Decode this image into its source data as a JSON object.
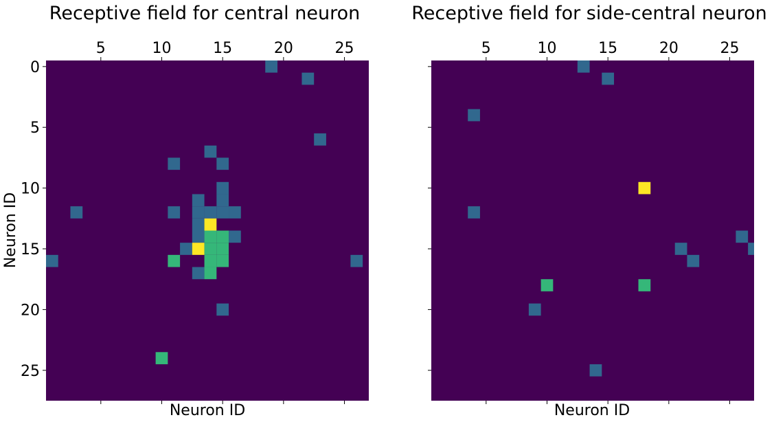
{
  "palette": {
    "background": "#440154",
    "low": "#31688e",
    "mid": "#35b779",
    "high": "#fde725"
  },
  "chart_data": [
    {
      "type": "heatmap",
      "title": "Receptive field for central neuron",
      "xlabel": "Neuron ID",
      "ylabel": "Neuron ID",
      "x_ticks_top": [
        "5",
        "10",
        "15",
        "20",
        "25"
      ],
      "y_ticks": [
        "0",
        "5",
        "10",
        "15",
        "20",
        "25"
      ],
      "x_range": [
        0.5,
        27.0
      ],
      "y_range": [
        -0.5,
        27.5
      ],
      "color_scale": "viridis",
      "cells": [
        {
          "x": 19,
          "y": 0,
          "level": 1
        },
        {
          "x": 22,
          "y": 1,
          "level": 1
        },
        {
          "x": 23,
          "y": 6,
          "level": 1
        },
        {
          "x": 14,
          "y": 7,
          "level": 1
        },
        {
          "x": 11,
          "y": 8,
          "level": 1
        },
        {
          "x": 15,
          "y": 8,
          "level": 1
        },
        {
          "x": 15,
          "y": 10,
          "level": 1
        },
        {
          "x": 13,
          "y": 11,
          "level": 1
        },
        {
          "x": 15,
          "y": 11,
          "level": 1
        },
        {
          "x": 3,
          "y": 12,
          "level": 1
        },
        {
          "x": 11,
          "y": 12,
          "level": 1
        },
        {
          "x": 13,
          "y": 12,
          "level": 1
        },
        {
          "x": 14,
          "y": 12,
          "level": 1
        },
        {
          "x": 15,
          "y": 12,
          "level": 1
        },
        {
          "x": 16,
          "y": 12,
          "level": 1
        },
        {
          "x": 13,
          "y": 13,
          "level": 1
        },
        {
          "x": 14,
          "y": 13,
          "level": 3
        },
        {
          "x": 13,
          "y": 14,
          "level": 1
        },
        {
          "x": 14,
          "y": 14,
          "level": 2
        },
        {
          "x": 15,
          "y": 14,
          "level": 2
        },
        {
          "x": 16,
          "y": 14,
          "level": 1
        },
        {
          "x": 12,
          "y": 15,
          "level": 1
        },
        {
          "x": 13,
          "y": 15,
          "level": 3
        },
        {
          "x": 14,
          "y": 15,
          "level": 2
        },
        {
          "x": 15,
          "y": 15,
          "level": 2
        },
        {
          "x": 1,
          "y": 16,
          "level": 1
        },
        {
          "x": 11,
          "y": 16,
          "level": 2
        },
        {
          "x": 14,
          "y": 16,
          "level": 2
        },
        {
          "x": 15,
          "y": 16,
          "level": 2
        },
        {
          "x": 26,
          "y": 16,
          "level": 1
        },
        {
          "x": 13,
          "y": 17,
          "level": 1
        },
        {
          "x": 14,
          "y": 17,
          "level": 2
        },
        {
          "x": 15,
          "y": 20,
          "level": 1
        },
        {
          "x": 10,
          "y": 24,
          "level": 2
        }
      ]
    },
    {
      "type": "heatmap",
      "title": "Receptive field for side-central neuron",
      "xlabel": "Neuron ID",
      "ylabel": "",
      "x_ticks_top": [
        "5",
        "10",
        "15",
        "20",
        "25"
      ],
      "y_ticks": [],
      "x_range": [
        0.5,
        27.0
      ],
      "y_range": [
        -0.5,
        27.5
      ],
      "color_scale": "viridis",
      "cells": [
        {
          "x": 13,
          "y": 0,
          "level": 1
        },
        {
          "x": 15,
          "y": 1,
          "level": 1
        },
        {
          "x": 4,
          "y": 4,
          "level": 1
        },
        {
          "x": 18,
          "y": 10,
          "level": 3
        },
        {
          "x": 4,
          "y": 12,
          "level": 1
        },
        {
          "x": 26,
          "y": 14,
          "level": 1
        },
        {
          "x": 21,
          "y": 15,
          "level": 1
        },
        {
          "x": 27,
          "y": 15,
          "level": 1
        },
        {
          "x": 22,
          "y": 16,
          "level": 1
        },
        {
          "x": 10,
          "y": 18,
          "level": 2
        },
        {
          "x": 18,
          "y": 18,
          "level": 2
        },
        {
          "x": 9,
          "y": 20,
          "level": 1
        },
        {
          "x": 14,
          "y": 25,
          "level": 1
        }
      ]
    }
  ]
}
